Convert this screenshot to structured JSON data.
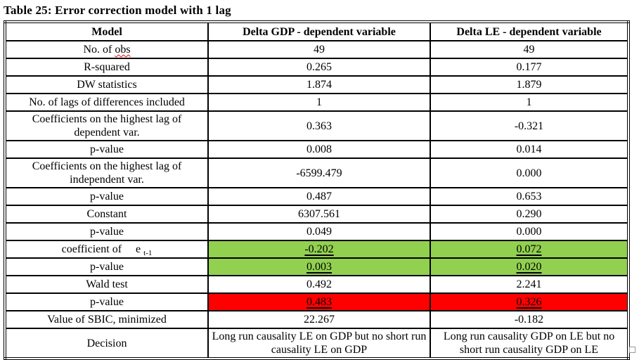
{
  "title": "Table 25: Error correction model with 1 lag",
  "colors": {
    "highlight_green": "#92d050",
    "highlight_red": "#ff0000",
    "spellcheck_wavy": "#ff0000",
    "border": "#000000"
  },
  "table": {
    "headers": [
      "Model",
      "Delta GDP - dependent variable",
      "Delta LE - dependent variable"
    ],
    "rows": [
      {
        "label": "No. of obs",
        "wavy_word": "obs",
        "values": [
          "49",
          "49"
        ]
      },
      {
        "label": "R-squared",
        "values": [
          "0.265",
          "0.177"
        ]
      },
      {
        "label": "DW statistics",
        "values": [
          "1.874",
          "1.879"
        ]
      },
      {
        "label": "No. of lags of differences included",
        "values": [
          "1",
          "1"
        ]
      },
      {
        "label": "Coefficients on the highest lag of dependent var.",
        "values": [
          "0.363",
          "-0.321"
        ]
      },
      {
        "label": "p-value",
        "values": [
          "0.008",
          "0.014"
        ]
      },
      {
        "label": "Coefficients on the highest lag of independent var.",
        "values": [
          "-6599.479",
          "0.000"
        ]
      },
      {
        "label": "p-value",
        "values": [
          "0.487",
          "0.653"
        ]
      },
      {
        "label": "Constant",
        "values": [
          "6307.561",
          "0.290"
        ]
      },
      {
        "label": "p-value",
        "values": [
          "0.049",
          "0.000"
        ]
      },
      {
        "label": "coefficient of",
        "math": {
          "base": "e",
          "sub": "t-1"
        },
        "values": [
          "-0.202",
          "0.072"
        ],
        "highlight": "green",
        "underline": true
      },
      {
        "label": "p-value",
        "values": [
          "0.003",
          "0.020"
        ],
        "highlight": "green",
        "underline": true
      },
      {
        "label": "Wald test",
        "values": [
          "0.492",
          "2.241"
        ]
      },
      {
        "label": "p-value",
        "values": [
          "0.483",
          "0.326"
        ],
        "highlight": "red",
        "underline": true
      },
      {
        "label": "Value of SBIC, minimized",
        "values": [
          "22.267",
          "-0.182"
        ]
      },
      {
        "label": "Decision",
        "values": [
          "Long run causality LE on GDP but no short run causality LE on GDP",
          "Long run causality GDP on LE but no short run causality GDP on LE"
        ]
      }
    ]
  }
}
